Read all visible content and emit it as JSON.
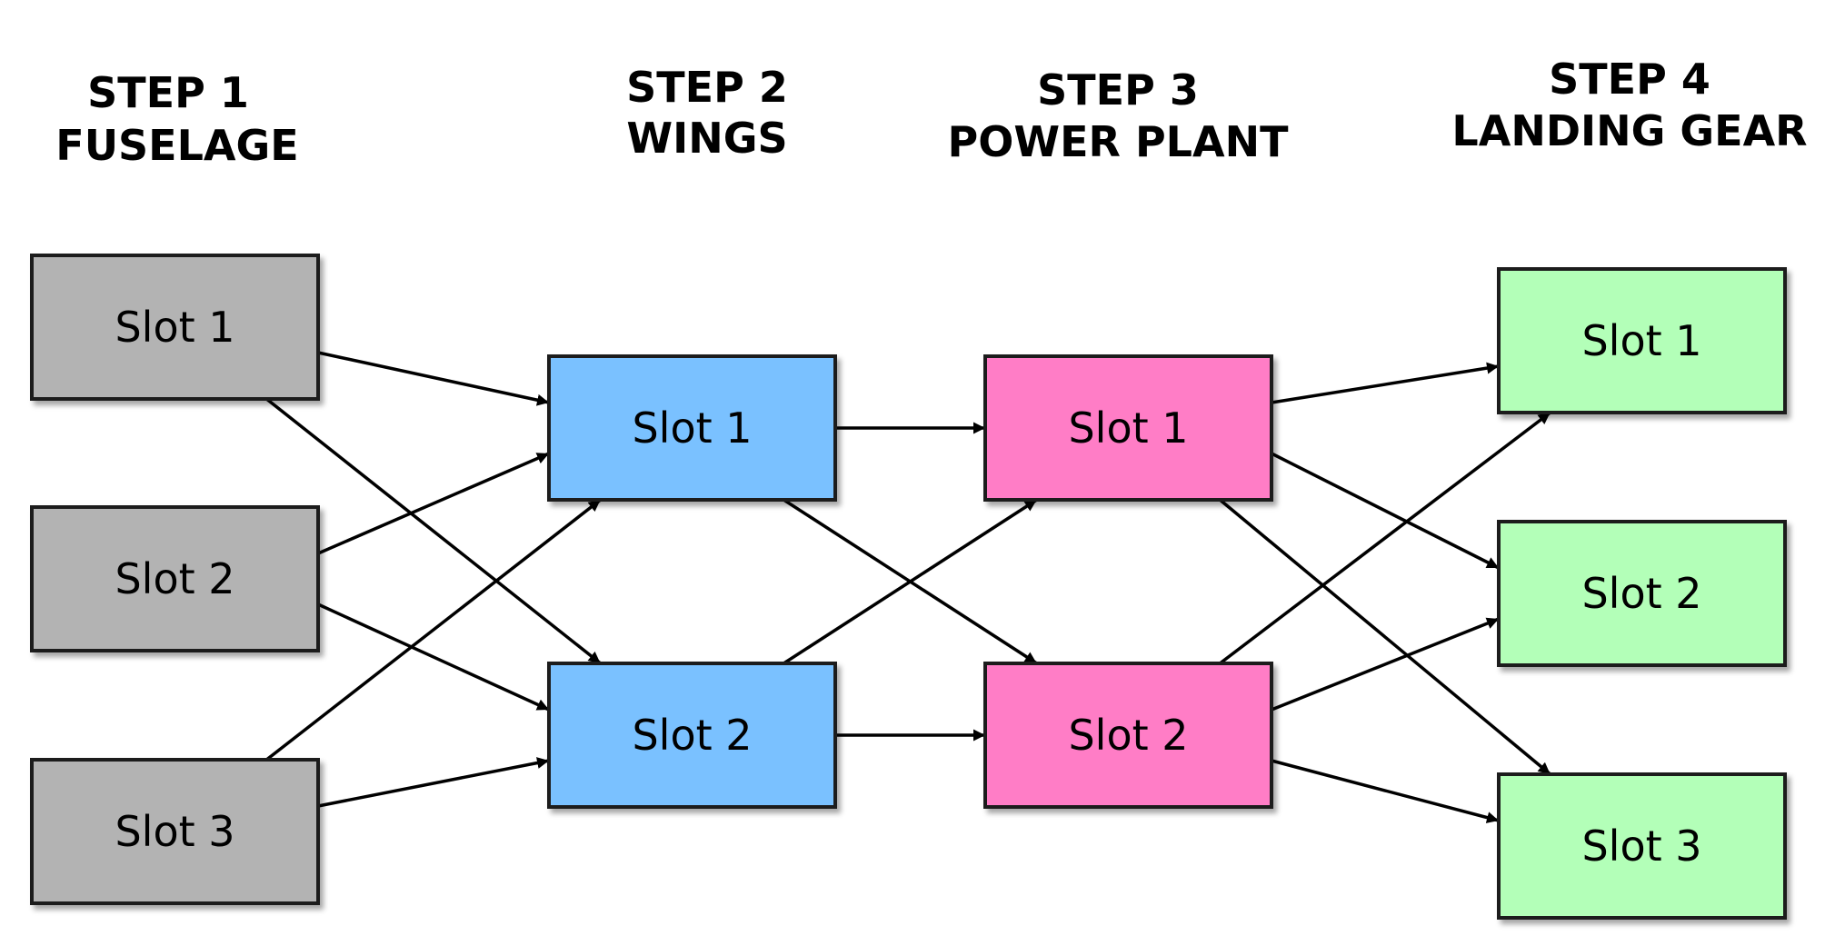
{
  "steps": [
    {
      "id": "step1",
      "title_line1": "STEP 1",
      "title_line2": "FUSELAGE",
      "color": "#b3b3b3",
      "slots": [
        "Slot 1",
        "Slot 2",
        "Slot 3"
      ]
    },
    {
      "id": "step2",
      "title_line1": "STEP 2",
      "title_line2": "WINGS",
      "color": "#7ac1ff",
      "slots": [
        "Slot 1",
        "Slot 2"
      ]
    },
    {
      "id": "step3",
      "title_line1": "STEP 3",
      "title_line2": "POWER PLANT",
      "color": "#ff7dc6",
      "slots": [
        "Slot 1",
        "Slot 2"
      ]
    },
    {
      "id": "step4",
      "title_line1": "STEP 4",
      "title_line2": "LANDING GEAR",
      "color": "#b3ffb8",
      "slots": [
        "Slot 1",
        "Slot 2",
        "Slot 3"
      ]
    }
  ],
  "edges": [
    {
      "from": "step1.0",
      "to": "step2.0"
    },
    {
      "from": "step1.0",
      "to": "step2.1"
    },
    {
      "from": "step1.1",
      "to": "step2.0"
    },
    {
      "from": "step1.1",
      "to": "step2.1"
    },
    {
      "from": "step1.2",
      "to": "step2.0"
    },
    {
      "from": "step1.2",
      "to": "step2.1"
    },
    {
      "from": "step2.0",
      "to": "step3.0"
    },
    {
      "from": "step2.0",
      "to": "step3.1"
    },
    {
      "from": "step2.1",
      "to": "step3.0"
    },
    {
      "from": "step2.1",
      "to": "step3.1"
    },
    {
      "from": "step3.0",
      "to": "step4.0"
    },
    {
      "from": "step3.0",
      "to": "step4.1"
    },
    {
      "from": "step3.0",
      "to": "step4.2"
    },
    {
      "from": "step3.1",
      "to": "step4.0"
    },
    {
      "from": "step3.1",
      "to": "step4.1"
    },
    {
      "from": "step3.1",
      "to": "step4.2"
    }
  ]
}
